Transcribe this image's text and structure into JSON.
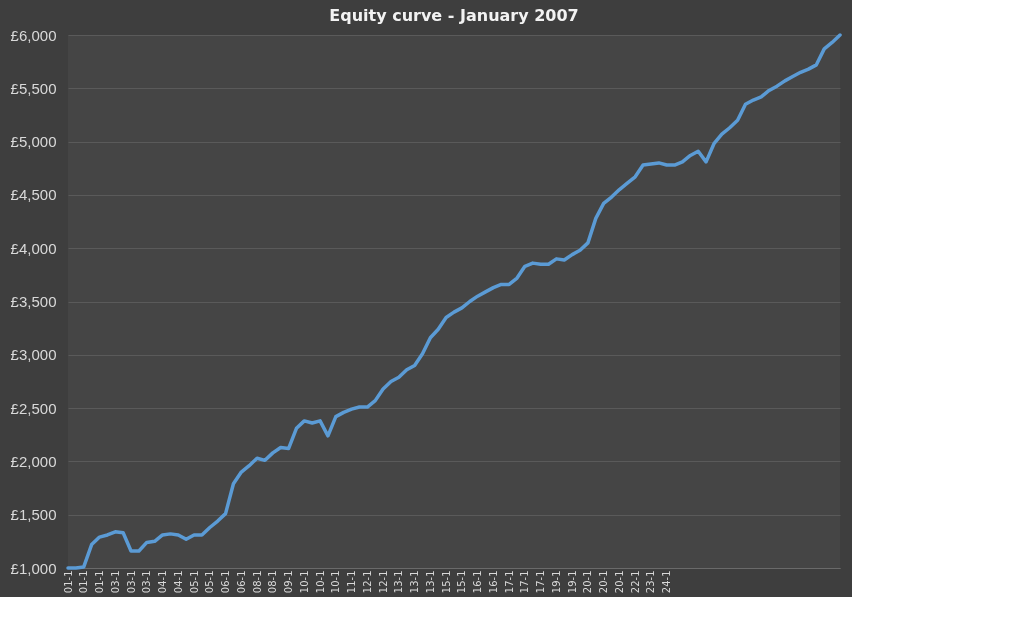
{
  "chart_data": {
    "type": "line",
    "title": "Equity curve - January 2007",
    "categories": [
      "01-1",
      null,
      "01-1",
      null,
      "01-1",
      null,
      "03-1",
      null,
      "03-1",
      null,
      "03-1",
      null,
      "04-1",
      null,
      "04-1",
      null,
      "05-1",
      null,
      "05-1",
      null,
      "06-1",
      null,
      "06-1",
      null,
      "08-1",
      null,
      "08-1",
      null,
      "09-1",
      null,
      "10-1",
      null,
      "10-1",
      null,
      "10-1",
      null,
      "11-1",
      null,
      "12-1",
      null,
      "12-1",
      null,
      "13-1",
      null,
      "13-1",
      null,
      "13-1",
      null,
      "15-1",
      null,
      "15-1",
      null,
      "16-1",
      null,
      "16-1",
      null,
      "17-1",
      null,
      "17-1",
      null,
      "17-1",
      null,
      "19-1",
      null,
      "19-1",
      null,
      "20-1",
      null,
      "20-1",
      null,
      "20-1",
      null,
      "22-1",
      null,
      "23-1",
      null,
      "24-1",
      null,
      null,
      null,
      null,
      null,
      null,
      null,
      null,
      null,
      null,
      null,
      null,
      null,
      null,
      null,
      null,
      null,
      null,
      null,
      null,
      null,
      null
    ],
    "series": [
      {
        "color": "#5b9bd5",
        "values": [
          1000,
          1000,
          1010,
          1220,
          1290,
          1310,
          1340,
          1330,
          1160,
          1160,
          1240,
          1250,
          1310,
          1320,
          1310,
          1270,
          1310,
          1310,
          1380,
          1440,
          1510,
          1790,
          1900,
          1960,
          2030,
          2010,
          2080,
          2130,
          2120,
          2310,
          2380,
          2360,
          2380,
          2240,
          2420,
          2460,
          2490,
          2510,
          2510,
          2570,
          2680,
          2750,
          2790,
          2860,
          2900,
          3010,
          3160,
          3240,
          3350,
          3400,
          3440,
          3500,
          3550,
          3590,
          3630,
          3660,
          3660,
          3720,
          3830,
          3860,
          3850,
          3850,
          3900,
          3890,
          3940,
          3980,
          4050,
          4280,
          4420,
          4480,
          4550,
          4610,
          4670,
          4780,
          4790,
          4800,
          4780,
          4780,
          4810,
          4870,
          4910,
          4810,
          4980,
          5070,
          5130,
          5200,
          5350,
          5390,
          5420,
          5480,
          5520,
          5570,
          5610,
          5650,
          5680,
          5720,
          5870,
          5930,
          6000
        ]
      }
    ],
    "ylim": [
      1000,
      6000
    ],
    "yticks": [
      {
        "value": 1000,
        "label": "£1,000"
      },
      {
        "value": 1500,
        "label": "£1,500"
      },
      {
        "value": 2000,
        "label": "£2,000"
      },
      {
        "value": 2500,
        "label": "£2,500"
      },
      {
        "value": 3000,
        "label": "£3,000"
      },
      {
        "value": 3500,
        "label": "£3,500"
      },
      {
        "value": 4000,
        "label": "£4,000"
      },
      {
        "value": 4500,
        "label": "£4,500"
      },
      {
        "value": 5000,
        "label": "£5,000"
      },
      {
        "value": 5500,
        "label": "£5,500"
      },
      {
        "value": 6000,
        "label": "£6,000"
      }
    ],
    "grid": "y",
    "marker": "none",
    "line_style": "solid"
  }
}
